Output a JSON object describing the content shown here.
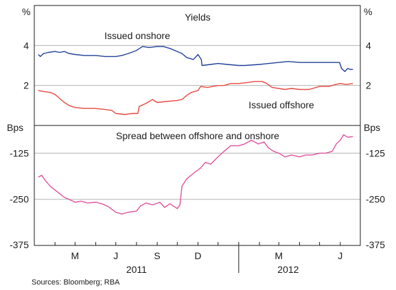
{
  "chart_data": [
    {
      "type": "line",
      "title": "Yields",
      "unit_left": "%",
      "unit_right": "%",
      "ylim": [
        0,
        6
      ],
      "yticks": [
        2,
        4
      ],
      "grid": true,
      "series": [
        {
          "name": "Issued onshore",
          "color": "#1f3f98",
          "points": [
            [
              "2011-03-07",
              3.55
            ],
            [
              "2011-03-10",
              3.45
            ],
            [
              "2011-03-15",
              3.6
            ],
            [
              "2011-03-22",
              3.65
            ],
            [
              "2011-04-01",
              3.7
            ],
            [
              "2011-04-08",
              3.65
            ],
            [
              "2011-04-15",
              3.7
            ],
            [
              "2011-04-22",
              3.6
            ],
            [
              "2011-05-01",
              3.55
            ],
            [
              "2011-05-15",
              3.5
            ],
            [
              "2011-06-01",
              3.5
            ],
            [
              "2011-06-15",
              3.45
            ],
            [
              "2011-07-01",
              3.45
            ],
            [
              "2011-07-10",
              3.5
            ],
            [
              "2011-07-20",
              3.6
            ],
            [
              "2011-08-01",
              3.75
            ],
            [
              "2011-08-10",
              3.95
            ],
            [
              "2011-08-20",
              3.9
            ],
            [
              "2011-09-01",
              3.95
            ],
            [
              "2011-09-10",
              3.95
            ],
            [
              "2011-09-20",
              3.85
            ],
            [
              "2011-10-01",
              3.7
            ],
            [
              "2011-10-08",
              3.6
            ],
            [
              "2011-10-15",
              3.4
            ],
            [
              "2011-10-25",
              3.3
            ],
            [
              "2011-11-01",
              3.55
            ],
            [
              "2011-11-06",
              3.3
            ],
            [
              "2011-11-07",
              3.0
            ],
            [
              "2011-11-20",
              3.05
            ],
            [
              "2011-12-01",
              3.1
            ],
            [
              "2011-12-15",
              3.05
            ],
            [
              "2012-01-01",
              3.0
            ],
            [
              "2012-01-10",
              3.0
            ],
            [
              "2012-02-01",
              3.05
            ],
            [
              "2012-02-15",
              3.1
            ],
            [
              "2012-03-01",
              3.15
            ],
            [
              "2012-03-15",
              3.2
            ],
            [
              "2012-04-01",
              3.15
            ],
            [
              "2012-04-15",
              3.15
            ],
            [
              "2012-05-01",
              3.15
            ],
            [
              "2012-05-15",
              3.15
            ],
            [
              "2012-05-31",
              3.15
            ],
            [
              "2012-06-03",
              2.85
            ],
            [
              "2012-06-08",
              2.7
            ],
            [
              "2012-06-12",
              2.85
            ],
            [
              "2012-06-16",
              2.8
            ],
            [
              "2012-06-20",
              2.8
            ]
          ]
        },
        {
          "name": "Issued offshore",
          "color": "#e8473f",
          "points": [
            [
              "2011-03-07",
              1.75
            ],
            [
              "2011-03-15",
              1.7
            ],
            [
              "2011-03-25",
              1.65
            ],
            [
              "2011-04-01",
              1.55
            ],
            [
              "2011-04-08",
              1.35
            ],
            [
              "2011-04-15",
              1.15
            ],
            [
              "2011-04-22",
              1.0
            ],
            [
              "2011-05-01",
              0.9
            ],
            [
              "2011-05-15",
              0.85
            ],
            [
              "2011-06-01",
              0.85
            ],
            [
              "2011-06-15",
              0.8
            ],
            [
              "2011-06-25",
              0.75
            ],
            [
              "2011-07-01",
              0.6
            ],
            [
              "2011-07-15",
              0.55
            ],
            [
              "2011-07-25",
              0.6
            ],
            [
              "2011-08-03",
              0.6
            ],
            [
              "2011-08-05",
              0.95
            ],
            [
              "2011-08-15",
              1.1
            ],
            [
              "2011-08-25",
              1.3
            ],
            [
              "2011-09-01",
              1.15
            ],
            [
              "2011-09-15",
              1.2
            ],
            [
              "2011-10-01",
              1.25
            ],
            [
              "2011-10-08",
              1.3
            ],
            [
              "2011-10-15",
              1.5
            ],
            [
              "2011-10-22",
              1.65
            ],
            [
              "2011-11-01",
              1.75
            ],
            [
              "2011-11-05",
              1.95
            ],
            [
              "2011-11-15",
              1.9
            ],
            [
              "2011-12-01",
              2.0
            ],
            [
              "2011-12-10",
              2.0
            ],
            [
              "2011-12-20",
              2.1
            ],
            [
              "2012-01-01",
              2.1
            ],
            [
              "2012-01-15",
              2.15
            ],
            [
              "2012-01-25",
              2.2
            ],
            [
              "2012-02-05",
              2.2
            ],
            [
              "2012-02-12",
              2.1
            ],
            [
              "2012-02-20",
              1.9
            ],
            [
              "2012-03-01",
              1.85
            ],
            [
              "2012-03-10",
              1.8
            ],
            [
              "2012-03-20",
              1.85
            ],
            [
              "2012-04-01",
              1.8
            ],
            [
              "2012-04-15",
              1.8
            ],
            [
              "2012-05-01",
              1.95
            ],
            [
              "2012-05-15",
              1.95
            ],
            [
              "2012-05-25",
              2.05
            ],
            [
              "2012-06-01",
              2.1
            ],
            [
              "2012-06-10",
              2.05
            ],
            [
              "2012-06-20",
              2.1
            ]
          ]
        }
      ]
    },
    {
      "type": "line",
      "title": "Spread between offshore and onshore",
      "unit_left": "Bps",
      "unit_right": "Bps",
      "ylim": [
        -375,
        -50
      ],
      "yticks": [
        -375,
        -250,
        -125
      ],
      "grid": true,
      "series": [
        {
          "color": "#e0529c",
          "points": [
            [
              "2011-03-07",
              -190
            ],
            [
              "2011-03-12",
              -185
            ],
            [
              "2011-03-18",
              -200
            ],
            [
              "2011-03-25",
              -215
            ],
            [
              "2011-04-01",
              -225
            ],
            [
              "2011-04-08",
              -235
            ],
            [
              "2011-04-15",
              -245
            ],
            [
              "2011-04-22",
              -250
            ],
            [
              "2011-05-01",
              -258
            ],
            [
              "2011-05-10",
              -255
            ],
            [
              "2011-05-20",
              -260
            ],
            [
              "2011-06-01",
              -258
            ],
            [
              "2011-06-10",
              -262
            ],
            [
              "2011-06-20",
              -270
            ],
            [
              "2011-07-01",
              -285
            ],
            [
              "2011-07-10",
              -290
            ],
            [
              "2011-07-20",
              -285
            ],
            [
              "2011-08-01",
              -282
            ],
            [
              "2011-08-07",
              -268
            ],
            [
              "2011-08-15",
              -260
            ],
            [
              "2011-08-25",
              -265
            ],
            [
              "2011-09-05",
              -258
            ],
            [
              "2011-09-12",
              -272
            ],
            [
              "2011-09-20",
              -262
            ],
            [
              "2011-10-01",
              -275
            ],
            [
              "2011-10-05",
              -265
            ],
            [
              "2011-10-08",
              -215
            ],
            [
              "2011-10-15",
              -195
            ],
            [
              "2011-10-25",
              -180
            ],
            [
              "2011-11-05",
              -165
            ],
            [
              "2011-11-12",
              -150
            ],
            [
              "2011-11-20",
              -155
            ],
            [
              "2011-12-01",
              -135
            ],
            [
              "2011-12-10",
              -120
            ],
            [
              "2011-12-20",
              -105
            ],
            [
              "2012-01-01",
              -105
            ],
            [
              "2012-01-10",
              -100
            ],
            [
              "2012-01-20",
              -90
            ],
            [
              "2012-01-30",
              -100
            ],
            [
              "2012-02-08",
              -95
            ],
            [
              "2012-02-14",
              -110
            ],
            [
              "2012-02-22",
              -120
            ],
            [
              "2012-03-01",
              -125
            ],
            [
              "2012-03-10",
              -135
            ],
            [
              "2012-03-20",
              -130
            ],
            [
              "2012-04-01",
              -135
            ],
            [
              "2012-04-10",
              -130
            ],
            [
              "2012-04-20",
              -130
            ],
            [
              "2012-05-01",
              -125
            ],
            [
              "2012-05-10",
              -125
            ],
            [
              "2012-05-20",
              -120
            ],
            [
              "2012-05-26",
              -100
            ],
            [
              "2012-06-01",
              -90
            ],
            [
              "2012-06-06",
              -75
            ],
            [
              "2012-06-12",
              -82
            ],
            [
              "2012-06-20",
              -80
            ]
          ]
        }
      ]
    }
  ],
  "x_axis": {
    "start": "2011-03-01",
    "end": "2012-07-01",
    "month_labels": [
      {
        "label": "M",
        "date": "2011-05-01"
      },
      {
        "label": "J",
        "date": "2011-07-01"
      },
      {
        "label": "S",
        "date": "2011-09-01"
      },
      {
        "label": "D",
        "date": "2011-11-01"
      },
      {
        "label": "M",
        "date": "2012-03-01"
      },
      {
        "label": "J",
        "date": "2012-06-01"
      }
    ],
    "year_labels": [
      {
        "label": "2011",
        "date": "2011-08-01"
      },
      {
        "label": "2012",
        "date": "2012-03-15"
      }
    ]
  },
  "footnote": "Sources: Bloomberg; RBA"
}
